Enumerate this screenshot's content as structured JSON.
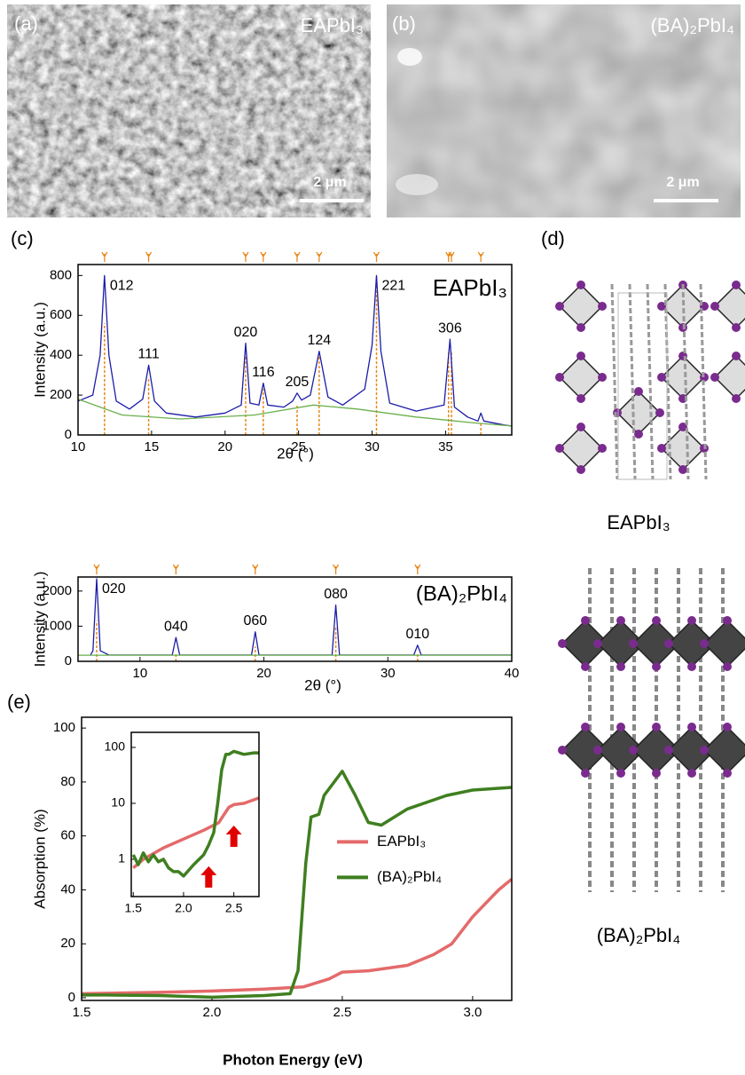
{
  "panels": {
    "a": {
      "label": "(a)",
      "sample": "EAPbI₃",
      "scale_bar": "2 μm"
    },
    "b": {
      "label": "(b)",
      "sample": "(BA)₂PbI₄",
      "scale_bar": "2 μm"
    },
    "c": {
      "label": "(c)"
    },
    "d": {
      "label": "(d)",
      "structures": [
        "EAPbI₃",
        "(BA)₂PbI₄"
      ]
    },
    "e": {
      "label": "(e)"
    }
  },
  "chart_data": [
    {
      "type": "line",
      "title": "EAPbI₃",
      "xlabel": "2θ (°)",
      "ylabel": "Intensity (a.u.)",
      "xlim": [
        10,
        39.5
      ],
      "ylim": [
        0,
        855
      ],
      "xticks": [
        10,
        15,
        20,
        25,
        30,
        35
      ],
      "yticks": [
        0,
        200,
        400,
        600,
        800
      ],
      "series": [
        {
          "color": "#1c1ca8",
          "x": [
            10,
            11,
            11.5,
            11.8,
            12.1,
            12.6,
            13.5,
            14.4,
            14.8,
            15.2,
            16,
            18,
            20,
            21.1,
            21.4,
            21.7,
            22.3,
            22.6,
            22.9,
            24,
            24.6,
            24.9,
            25.2,
            25.8,
            26.4,
            27,
            28,
            29.5,
            30,
            30.3,
            30.6,
            31.2,
            33,
            34.9,
            35.3,
            35.6,
            36.5,
            37.2,
            37.4,
            37.6,
            39,
            39.5
          ],
          "values": [
            170,
            200,
            400,
            800,
            400,
            170,
            130,
            180,
            350,
            170,
            110,
            90,
            110,
            150,
            460,
            160,
            150,
            260,
            150,
            140,
            170,
            210,
            175,
            200,
            420,
            190,
            150,
            230,
            450,
            800,
            420,
            160,
            120,
            150,
            480,
            140,
            90,
            70,
            110,
            70,
            50,
            45
          ]
        },
        {
          "color": "#6ab04c",
          "x": [
            10,
            13,
            17,
            22,
            26,
            29,
            33,
            37,
            39.5
          ],
          "values": [
            180,
            100,
            80,
            100,
            150,
            130,
            90,
            60,
            45
          ]
        }
      ],
      "reference_peaks": {
        "color": "#e8891c",
        "x": [
          11.8,
          14.8,
          21.4,
          22.6,
          24.9,
          26.4,
          30.3,
          35.2,
          35.4,
          37.4
        ],
        "values": [
          560,
          280,
          400,
          230,
          150,
          400,
          800,
          420,
          420,
          60
        ]
      },
      "peak_labels": [
        {
          "text": "012",
          "x": 11.8,
          "y": 800
        },
        {
          "text": "111",
          "x": 14.8,
          "y": 350
        },
        {
          "text": "020",
          "x": 21.4,
          "y": 460
        },
        {
          "text": "116",
          "x": 22.6,
          "y": 260
        },
        {
          "text": "205",
          "x": 24.9,
          "y": 210
        },
        {
          "text": "124",
          "x": 26.4,
          "y": 420
        },
        {
          "text": "221",
          "x": 30.3,
          "y": 800
        },
        {
          "text": "306",
          "x": 35.3,
          "y": 480
        }
      ]
    },
    {
      "type": "line",
      "title": "(BA)₂PbI₄",
      "xlabel": "2θ (°)",
      "ylabel": "Intensity (a.u.)",
      "xlim": [
        5,
        40
      ],
      "ylim": [
        0,
        2400
      ],
      "xticks": [
        10,
        20,
        30,
        40
      ],
      "yticks": [
        0,
        1000,
        2000
      ],
      "series": [
        {
          "color": "#1c1ca8",
          "x": [
            6,
            6.2,
            6.5,
            6.8,
            7.5,
            12.6,
            12.9,
            13.2,
            19,
            19.3,
            19.6,
            25.5,
            25.8,
            26.1,
            32.1,
            32.4,
            32.7,
            40
          ],
          "values": [
            180,
            300,
            2350,
            300,
            180,
            180,
            680,
            180,
            180,
            840,
            180,
            180,
            1600,
            180,
            180,
            460,
            180,
            180
          ]
        },
        {
          "color": "#6ab04c",
          "x": [
            5,
            40
          ],
          "values": [
            175,
            175
          ]
        }
      ],
      "reference_peaks": {
        "color": "#e8891c",
        "x": [
          6.5,
          12.9,
          19.3,
          25.8,
          32.4
        ],
        "values": [
          1150,
          250,
          420,
          1000,
          250
        ]
      },
      "peak_labels": [
        {
          "text": "020",
          "x": 6.5,
          "y": 2350
        },
        {
          "text": "040",
          "x": 12.9,
          "y": 680
        },
        {
          "text": "060",
          "x": 19.3,
          "y": 840
        },
        {
          "text": "080",
          "x": 25.8,
          "y": 1600
        },
        {
          "text": "010",
          "x": 32.4,
          "y": 460
        }
      ]
    },
    {
      "type": "line",
      "xlabel": "Photon Energy (eV)",
      "ylabel": "Absorption (%)",
      "xlim": [
        1.5,
        3.15
      ],
      "ylim": [
        -1,
        104
      ],
      "xticks": [
        1.5,
        {
          "value": 2,
          "label": "2.0"
        },
        2.5,
        {
          "value": 3,
          "label": "3.0"
        }
      ],
      "yticks": [
        0,
        20,
        40,
        60,
        80,
        100
      ],
      "legend": "center right",
      "series": [
        {
          "name": "EAPbI₃",
          "color": "#e46a6a",
          "x": [
            1.5,
            1.8,
            2.0,
            2.2,
            2.35,
            2.45,
            2.5,
            2.6,
            2.75,
            2.85,
            2.92,
            3.0,
            3.1,
            3.15
          ],
          "values": [
            1.5,
            2,
            2.5,
            3.2,
            4,
            7,
            9.5,
            10,
            12,
            16,
            20,
            30,
            40,
            44
          ]
        },
        {
          "name": "(BA)₂PbI₄",
          "color": "#3f7f1f",
          "x": [
            1.5,
            1.6,
            1.8,
            2.0,
            2.2,
            2.3,
            2.33,
            2.36,
            2.38,
            2.41,
            2.43,
            2.5,
            2.55,
            2.6,
            2.65,
            2.75,
            2.9,
            3.0,
            3.15
          ],
          "values": [
            1,
            1,
            0.8,
            0.2,
            0.8,
            1.5,
            10,
            50,
            67,
            68,
            75,
            84,
            75,
            65,
            64,
            70,
            75,
            77,
            78
          ]
        }
      ]
    },
    {
      "type": "line",
      "log_y": true,
      "xlim": [
        1.48,
        2.75
      ],
      "ylim": [
        0.215,
        186
      ],
      "xticks": [
        1.5,
        {
          "value": 2,
          "label": "2.0"
        },
        2.5
      ],
      "yticks": [
        1,
        10,
        100
      ],
      "series": [
        {
          "color": "#e46a6a",
          "x": [
            1.5,
            1.6,
            1.8,
            2.0,
            2.2,
            2.35,
            2.45,
            2.5,
            2.6,
            2.75
          ],
          "values": [
            0.7,
            1.0,
            1.6,
            2.3,
            3.3,
            4.5,
            8.5,
            9.5,
            10,
            12.5
          ]
        },
        {
          "color": "#3f7f1f",
          "x": [
            1.5,
            1.55,
            1.6,
            1.65,
            1.7,
            1.75,
            1.8,
            1.85,
            1.9,
            1.95,
            2.0,
            2.1,
            2.2,
            2.25,
            2.3,
            2.34,
            2.38,
            2.42,
            2.45,
            2.5,
            2.55,
            2.6,
            2.7,
            2.75
          ],
          "values": [
            1.2,
            0.8,
            1.3,
            0.9,
            1.2,
            0.9,
            1,
            0.7,
            0.6,
            0.6,
            0.5,
            0.8,
            1.2,
            1.8,
            3,
            10,
            40,
            75,
            75,
            85,
            80,
            75,
            80,
            80
          ]
        }
      ],
      "arrows": {
        "color": "#e00000",
        "x": [
          2.25,
          2.5
        ],
        "values": [
          0.75,
          4
        ]
      }
    }
  ]
}
